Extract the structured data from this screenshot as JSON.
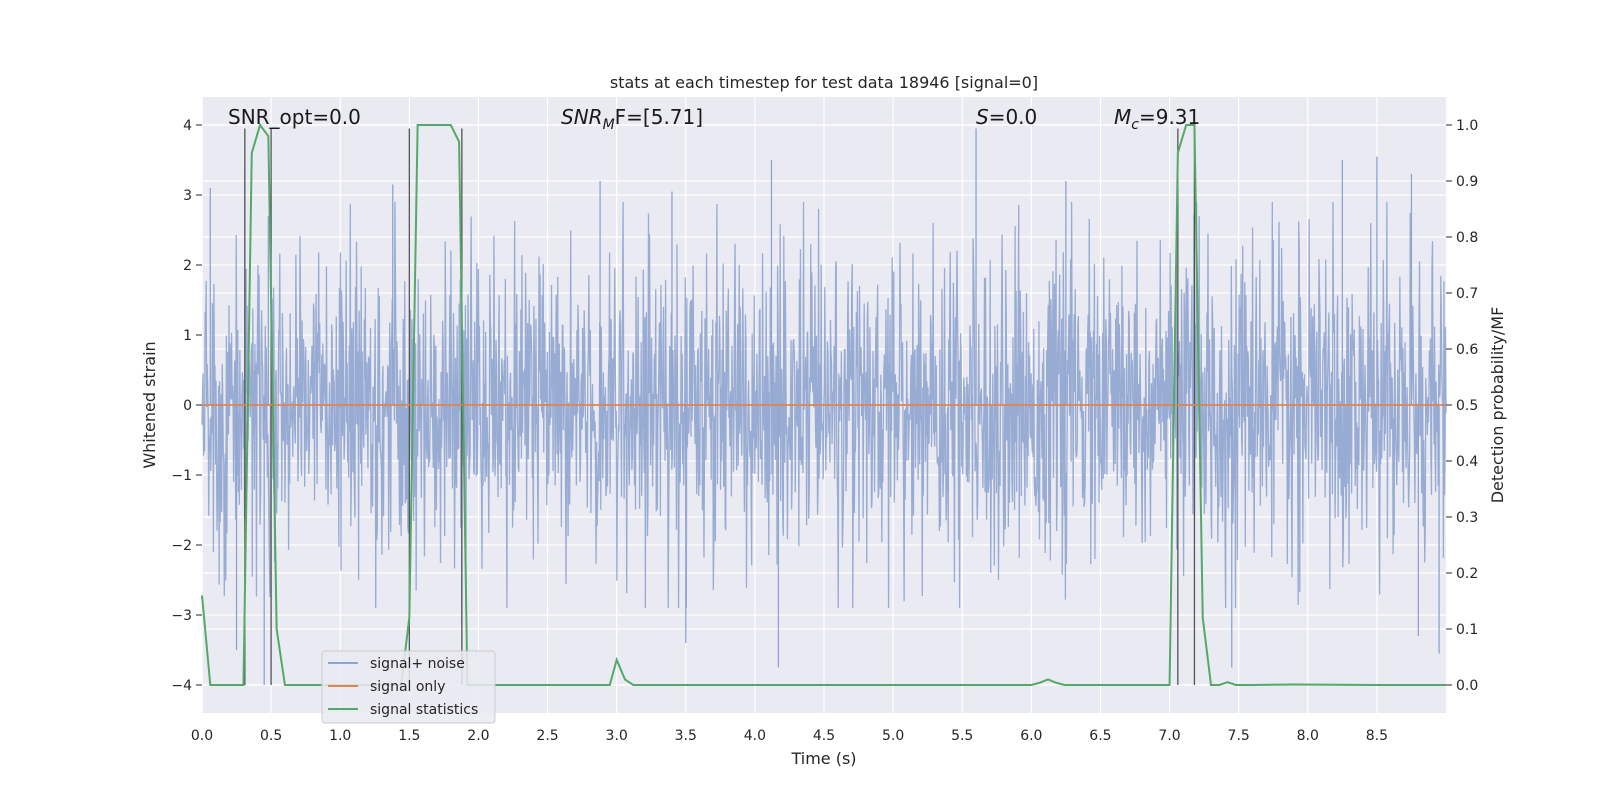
{
  "chart_data": {
    "type": "line",
    "title": "stats at each timestep for test data 18946 [signal=0]",
    "xlabel": "Time (s)",
    "ylabel_left": "Whitened strain",
    "ylabel_right": "Detection probability/MF",
    "xlim": [
      0.0,
      9.0
    ],
    "ylim_left": [
      -4.4,
      4.4
    ],
    "ylim_right": [
      -0.05,
      1.05
    ],
    "x_ticks": [
      "0.0",
      "0.5",
      "1.0",
      "1.5",
      "2.0",
      "2.5",
      "3.0",
      "3.5",
      "4.0",
      "4.5",
      "5.0",
      "5.5",
      "6.0",
      "6.5",
      "7.0",
      "7.5",
      "8.0",
      "8.5"
    ],
    "y_left_ticks": [
      "4",
      "3",
      "2",
      "1",
      "0",
      "−1",
      "−2",
      "−3",
      "−4"
    ],
    "y_right_ticks": [
      "1.0",
      "0.9",
      "0.8",
      "0.7",
      "0.6",
      "0.5",
      "0.4",
      "0.3",
      "0.2",
      "0.1",
      "0.0"
    ],
    "grid": true,
    "legend_position": "lower-left",
    "annotations": {
      "snr_opt": "SNR_opt=0.0",
      "snr_mf_main": "SNR",
      "snr_mf_sub": "M",
      "snr_mf_rest": "F=[5.71]",
      "s_main": "S",
      "s_rest": "=0.0",
      "mc_main": "M",
      "mc_sub": "c",
      "mc_rest": "=9.31"
    },
    "series": [
      {
        "name": "signal+ noise",
        "color": "#8fa4cf",
        "axis": "left",
        "description_envelope_upper": [
          2.4,
          2.2,
          2.5,
          2.3,
          2.6,
          2.4,
          2.7,
          2.5,
          2.8,
          2.6
        ],
        "peaks": [
          {
            "x": 0.06,
            "y": 3.1
          },
          {
            "x": 0.31,
            "y": 3.35
          },
          {
            "x": 0.48,
            "y": 2.7
          },
          {
            "x": 1.38,
            "y": 3.15
          },
          {
            "x": 2.88,
            "y": 3.2
          },
          {
            "x": 3.4,
            "y": 3.05
          },
          {
            "x": 4.12,
            "y": 3.5
          },
          {
            "x": 5.6,
            "y": 3.95
          },
          {
            "x": 6.25,
            "y": 3.2
          },
          {
            "x": 7.18,
            "y": 3.3
          },
          {
            "x": 8.25,
            "y": 3.5
          },
          {
            "x": 8.5,
            "y": 3.55
          },
          {
            "x": 8.75,
            "y": 3.3
          },
          {
            "x": 0.25,
            "y": -3.5
          },
          {
            "x": 0.45,
            "y": -4.0
          },
          {
            "x": 1.88,
            "y": -3.1
          },
          {
            "x": 3.5,
            "y": -3.4
          },
          {
            "x": 4.17,
            "y": -3.75
          },
          {
            "x": 7.45,
            "y": -3.75
          },
          {
            "x": 8.8,
            "y": -3.3
          },
          {
            "x": 8.95,
            "y": -3.55
          }
        ]
      },
      {
        "name": "signal only",
        "color": "#dd8452",
        "axis": "left",
        "x": [
          0.0,
          9.0
        ],
        "y": [
          0.0,
          0.0
        ]
      },
      {
        "name": "signal statistics",
        "color": "#55a868",
        "axis": "right",
        "x": [
          0.0,
          0.06,
          0.12,
          0.18,
          0.24,
          0.3,
          0.36,
          0.42,
          0.48,
          0.54,
          0.6,
          0.66,
          0.72,
          1.2,
          1.44,
          1.5,
          1.56,
          1.62,
          1.68,
          1.74,
          1.8,
          1.86,
          1.92,
          1.98,
          2.04,
          2.9,
          2.95,
          3.0,
          3.06,
          3.12,
          3.18,
          6.0,
          6.06,
          6.12,
          6.18,
          6.24,
          6.3,
          7.0,
          7.06,
          7.12,
          7.18,
          7.24,
          7.3,
          7.36,
          7.42,
          7.48,
          7.54,
          7.6,
          7.9,
          8.5,
          9.0
        ],
        "y": [
          0.16,
          0.0,
          0.0,
          0.0,
          0.0,
          0.0,
          0.95,
          1.0,
          0.98,
          0.1,
          0.0,
          0.0,
          0.0,
          0.0,
          0.0,
          0.12,
          1.0,
          1.0,
          1.0,
          1.0,
          1.0,
          0.97,
          0.0,
          0.0,
          0.0,
          0.0,
          0.0,
          0.045,
          0.01,
          0.0,
          0.0,
          0.0,
          0.004,
          0.01,
          0.004,
          0.0,
          0.0,
          0.0,
          0.95,
          1.0,
          1.0,
          0.12,
          0.0,
          0.0,
          0.005,
          0.0,
          0.0,
          0.0,
          0.001,
          0.0,
          0.0
        ]
      }
    ],
    "vertical_lines": [
      0.31,
      0.5,
      1.5,
      1.88,
      7.06,
      7.18
    ]
  }
}
